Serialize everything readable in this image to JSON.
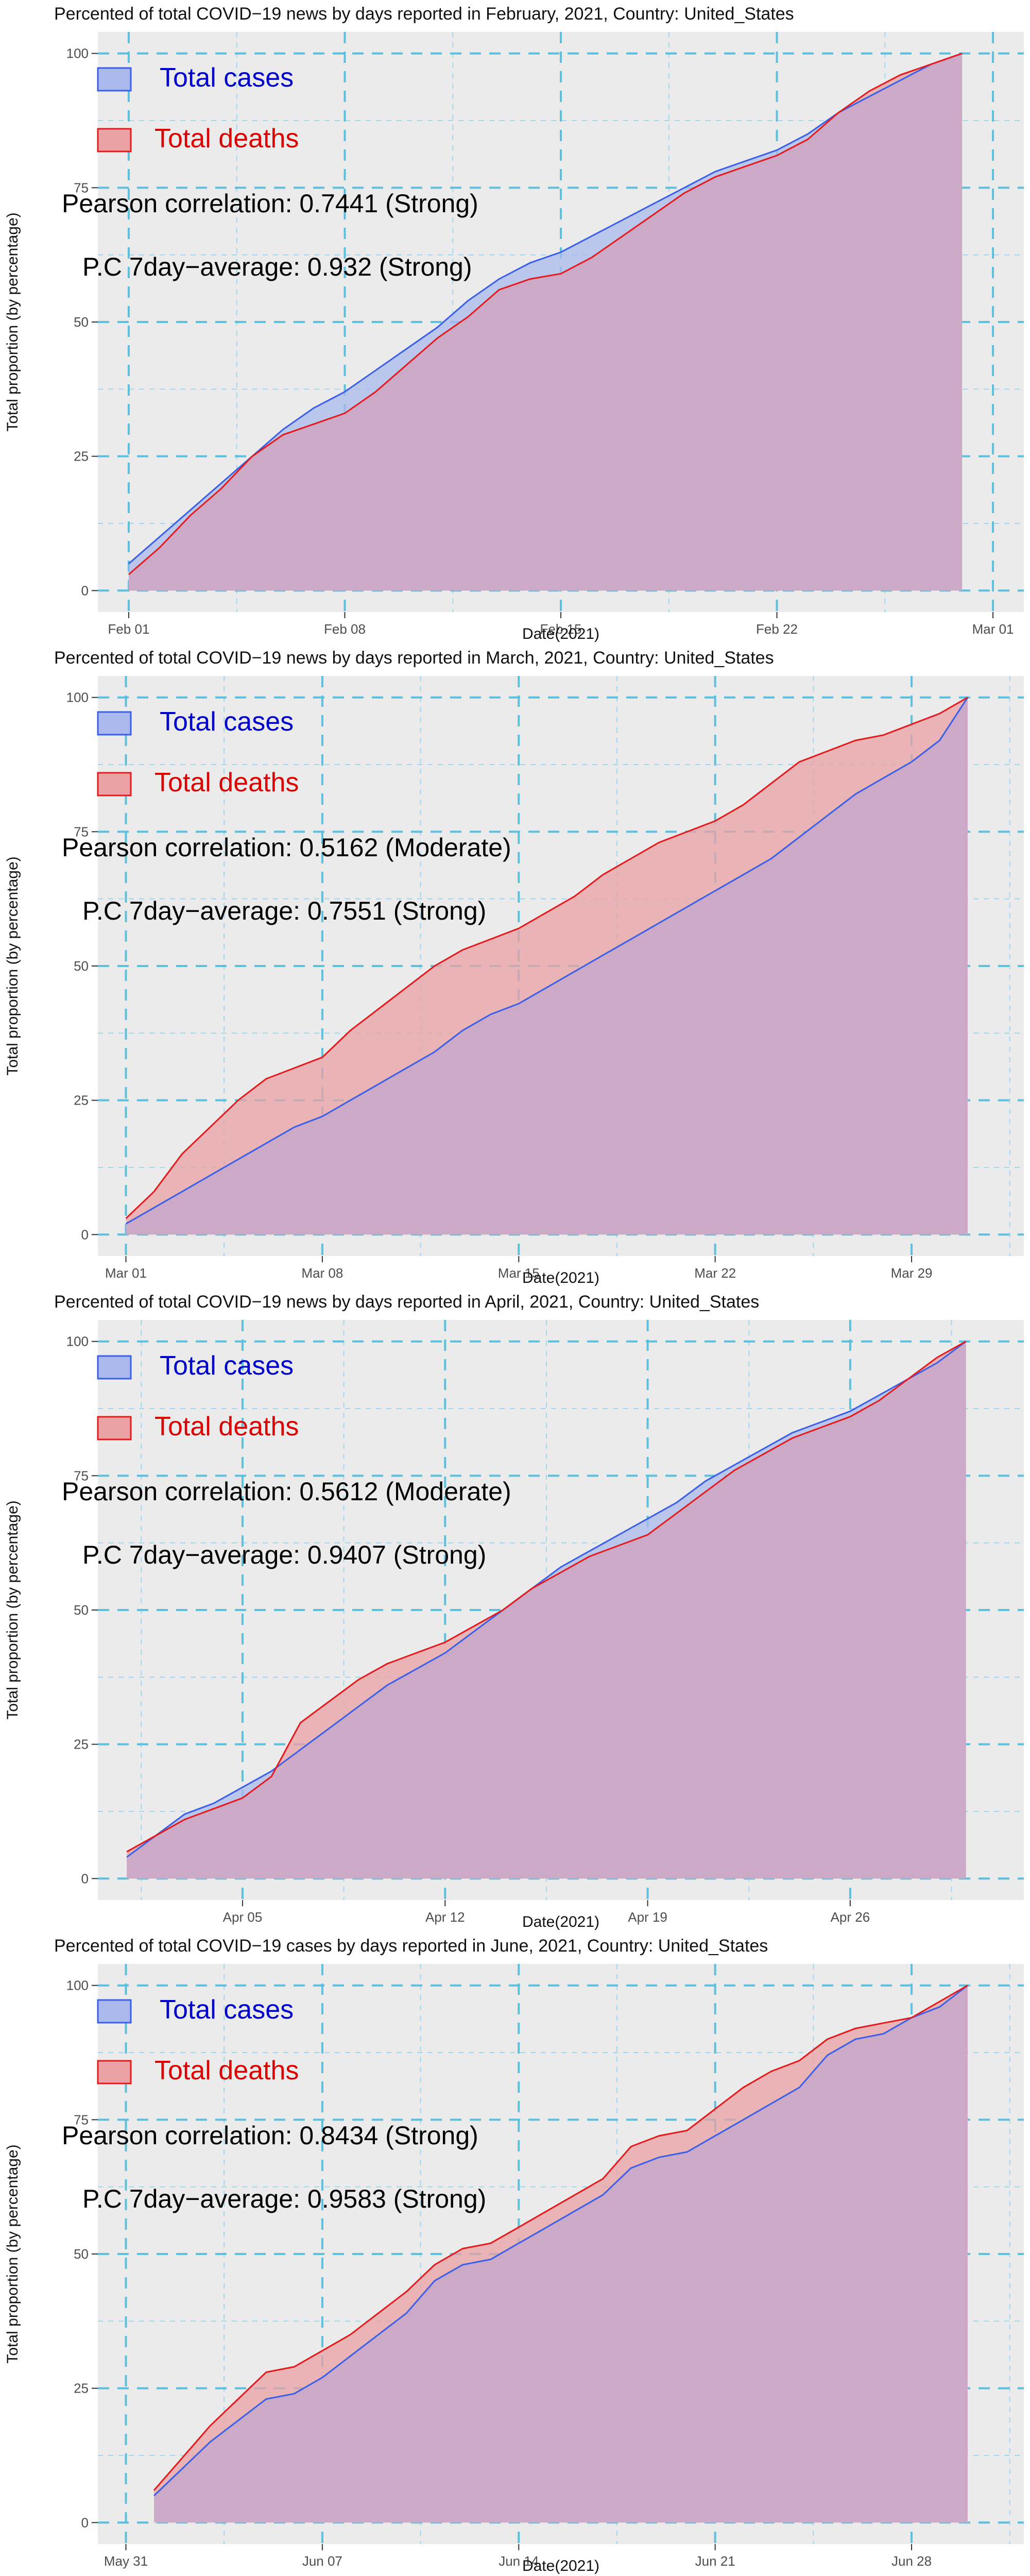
{
  "chart_data": [
    {
      "type": "area",
      "title": "Percented of total COVID−19 news by days reported in February, 2021, Country: United_States",
      "xlabel": "Date(2021)",
      "ylabel": "Total proportion (by percentage)",
      "x_range": [
        "2021-01-31",
        "2021-03-02"
      ],
      "ylim": [
        -4,
        104
      ],
      "x_ticks": [
        {
          "date": "2021-02-01",
          "label": "Feb 01"
        },
        {
          "date": "2021-02-08",
          "label": "Feb 08"
        },
        {
          "date": "2021-02-15",
          "label": "Feb 15"
        },
        {
          "date": "2021-02-22",
          "label": "Feb 22"
        },
        {
          "date": "2021-03-01",
          "label": "Mar 01"
        }
      ],
      "y_ticks": [
        0,
        25,
        50,
        75,
        100
      ],
      "grid": true,
      "legend_position": "top-left",
      "legend": [
        "Total cases",
        "Total deaths"
      ],
      "annotations": [
        "Pearson correlation: 0.7441 (Strong)",
        "P.C 7day−average: 0.932 (Strong)"
      ],
      "x": [
        "2021-02-01",
        "2021-02-02",
        "2021-02-03",
        "2021-02-04",
        "2021-02-05",
        "2021-02-06",
        "2021-02-07",
        "2021-02-08",
        "2021-02-09",
        "2021-02-10",
        "2021-02-11",
        "2021-02-12",
        "2021-02-13",
        "2021-02-14",
        "2021-02-15",
        "2021-02-16",
        "2021-02-17",
        "2021-02-18",
        "2021-02-19",
        "2021-02-20",
        "2021-02-21",
        "2021-02-22",
        "2021-02-23",
        "2021-02-24",
        "2021-02-25",
        "2021-02-26",
        "2021-02-27",
        "2021-02-28"
      ],
      "series": [
        {
          "name": "Total cases",
          "values": [
            5,
            10,
            15,
            20,
            25,
            30,
            34,
            37,
            41,
            45,
            49,
            54,
            58,
            61,
            63,
            66,
            69,
            72,
            75,
            78,
            80,
            82,
            85,
            89,
            92,
            95,
            98,
            100
          ]
        },
        {
          "name": "Total deaths",
          "values": [
            3,
            8,
            14,
            19,
            25,
            29,
            31,
            33,
            37,
            42,
            47,
            51,
            56,
            58,
            59,
            62,
            66,
            70,
            74,
            77,
            79,
            81,
            84,
            89,
            93,
            96,
            98,
            100
          ]
        }
      ]
    },
    {
      "type": "area",
      "title": "Percented of total COVID−19 news by days reported in March, 2021, Country: United_States",
      "xlabel": "Date(2021)",
      "ylabel": "Total proportion (by percentage)",
      "x_range": [
        "2021-02-28",
        "2021-04-02"
      ],
      "ylim": [
        -4,
        104
      ],
      "x_ticks": [
        {
          "date": "2021-03-01",
          "label": "Mar 01"
        },
        {
          "date": "2021-03-08",
          "label": "Mar 08"
        },
        {
          "date": "2021-03-15",
          "label": "Mar 15"
        },
        {
          "date": "2021-03-22",
          "label": "Mar 22"
        },
        {
          "date": "2021-03-29",
          "label": "Mar 29"
        }
      ],
      "y_ticks": [
        0,
        25,
        50,
        75,
        100
      ],
      "grid": true,
      "legend_position": "top-left",
      "legend": [
        "Total cases",
        "Total deaths"
      ],
      "annotations": [
        "Pearson correlation: 0.5162 (Moderate)",
        "P.C 7day−average: 0.7551 (Strong)"
      ],
      "x": [
        "2021-03-01",
        "2021-03-02",
        "2021-03-03",
        "2021-03-04",
        "2021-03-05",
        "2021-03-06",
        "2021-03-07",
        "2021-03-08",
        "2021-03-09",
        "2021-03-10",
        "2021-03-11",
        "2021-03-12",
        "2021-03-13",
        "2021-03-14",
        "2021-03-15",
        "2021-03-16",
        "2021-03-17",
        "2021-03-18",
        "2021-03-19",
        "2021-03-20",
        "2021-03-21",
        "2021-03-22",
        "2021-03-23",
        "2021-03-24",
        "2021-03-25",
        "2021-03-26",
        "2021-03-27",
        "2021-03-28",
        "2021-03-29",
        "2021-03-30",
        "2021-03-31"
      ],
      "series": [
        {
          "name": "Total cases",
          "values": [
            2,
            5,
            8,
            11,
            14,
            17,
            20,
            22,
            25,
            28,
            31,
            34,
            38,
            41,
            43,
            46,
            49,
            52,
            55,
            58,
            61,
            64,
            67,
            70,
            74,
            78,
            82,
            85,
            88,
            92,
            100
          ]
        },
        {
          "name": "Total deaths",
          "values": [
            3,
            8,
            15,
            20,
            25,
            29,
            31,
            33,
            38,
            42,
            46,
            50,
            53,
            55,
            57,
            60,
            63,
            67,
            70,
            73,
            75,
            77,
            80,
            84,
            88,
            90,
            92,
            93,
            95,
            97,
            100
          ]
        }
      ]
    },
    {
      "type": "area",
      "title": "Percented of total COVID−19 news by days reported in April, 2021, Country: United_States",
      "xlabel": "Date(2021)",
      "ylabel": "Total proportion (by percentage)",
      "x_range": [
        "2021-03-31",
        "2021-05-02"
      ],
      "ylim": [
        -4,
        104
      ],
      "x_ticks": [
        {
          "date": "2021-04-05",
          "label": "Apr 05"
        },
        {
          "date": "2021-04-12",
          "label": "Apr 12"
        },
        {
          "date": "2021-04-19",
          "label": "Apr 19"
        },
        {
          "date": "2021-04-26",
          "label": "Apr 26"
        }
      ],
      "y_ticks": [
        0,
        25,
        50,
        75,
        100
      ],
      "grid": true,
      "legend_position": "top-left",
      "legend": [
        "Total cases",
        "Total deaths"
      ],
      "annotations": [
        "Pearson correlation: 0.5612 (Moderate)",
        "P.C 7day−average: 0.9407 (Strong)"
      ],
      "x": [
        "2021-04-01",
        "2021-04-02",
        "2021-04-03",
        "2021-04-04",
        "2021-04-05",
        "2021-04-06",
        "2021-04-07",
        "2021-04-08",
        "2021-04-09",
        "2021-04-10",
        "2021-04-11",
        "2021-04-12",
        "2021-04-13",
        "2021-04-14",
        "2021-04-15",
        "2021-04-16",
        "2021-04-17",
        "2021-04-18",
        "2021-04-19",
        "2021-04-20",
        "2021-04-21",
        "2021-04-22",
        "2021-04-23",
        "2021-04-24",
        "2021-04-25",
        "2021-04-26",
        "2021-04-27",
        "2021-04-28",
        "2021-04-29",
        "2021-04-30"
      ],
      "series": [
        {
          "name": "Total cases",
          "values": [
            4,
            8,
            12,
            14,
            17,
            20,
            24,
            28,
            32,
            36,
            39,
            42,
            46,
            50,
            54,
            58,
            61,
            64,
            67,
            70,
            74,
            77,
            80,
            83,
            85,
            87,
            90,
            93,
            96,
            100
          ]
        },
        {
          "name": "Total deaths",
          "values": [
            5,
            8,
            11,
            13,
            15,
            19,
            29,
            33,
            37,
            40,
            42,
            44,
            47,
            50,
            54,
            57,
            60,
            62,
            64,
            68,
            72,
            76,
            79,
            82,
            84,
            86,
            89,
            93,
            97,
            100
          ]
        }
      ]
    },
    {
      "type": "area",
      "title": "Percented of total COVID−19 cases by days reported in June, 2021, Country: United_States",
      "xlabel": "Date(2021)",
      "ylabel": "Total proportion (by percentage)",
      "x_range": [
        "2021-05-30",
        "2021-07-02"
      ],
      "ylim": [
        -4,
        104
      ],
      "x_ticks": [
        {
          "date": "2021-05-31",
          "label": "May 31"
        },
        {
          "date": "2021-06-07",
          "label": "Jun 07"
        },
        {
          "date": "2021-06-14",
          "label": "Jun 14"
        },
        {
          "date": "2021-06-21",
          "label": "Jun 21"
        },
        {
          "date": "2021-06-28",
          "label": "Jun 28"
        }
      ],
      "y_ticks": [
        0,
        25,
        50,
        75,
        100
      ],
      "grid": true,
      "legend_position": "top-left",
      "legend": [
        "Total cases",
        "Total deaths"
      ],
      "annotations": [
        "Pearson correlation: 0.8434 (Strong)",
        "P.C 7day−average: 0.9583 (Strong)"
      ],
      "x": [
        "2021-06-01",
        "2021-06-02",
        "2021-06-03",
        "2021-06-04",
        "2021-06-05",
        "2021-06-06",
        "2021-06-07",
        "2021-06-08",
        "2021-06-09",
        "2021-06-10",
        "2021-06-11",
        "2021-06-12",
        "2021-06-13",
        "2021-06-14",
        "2021-06-15",
        "2021-06-16",
        "2021-06-17",
        "2021-06-18",
        "2021-06-19",
        "2021-06-20",
        "2021-06-21",
        "2021-06-22",
        "2021-06-23",
        "2021-06-24",
        "2021-06-25",
        "2021-06-26",
        "2021-06-27",
        "2021-06-28",
        "2021-06-29",
        "2021-06-30"
      ],
      "series": [
        {
          "name": "Total cases",
          "values": [
            5,
            10,
            15,
            19,
            23,
            24,
            27,
            31,
            35,
            39,
            45,
            48,
            49,
            52,
            55,
            58,
            61,
            66,
            68,
            69,
            72,
            75,
            78,
            81,
            87,
            90,
            91,
            94,
            96,
            100
          ]
        },
        {
          "name": "Total deaths",
          "values": [
            6,
            12,
            18,
            23,
            28,
            29,
            32,
            35,
            39,
            43,
            48,
            51,
            52,
            55,
            58,
            61,
            64,
            70,
            72,
            73,
            77,
            81,
            84,
            86,
            90,
            92,
            93,
            94,
            97,
            100
          ]
        }
      ]
    }
  ],
  "colors": {
    "panel_bg": "#ebebeb",
    "grid_major": "#5bc0de",
    "grid_minor": "#9fd7ec",
    "cases_line": "#3a5fe8",
    "cases_fill": "#a9b9ec",
    "deaths_line": "#e41a1c",
    "deaths_fill": "#eaa2a4",
    "overlap_fill": "#ccaac7",
    "cases_text": "#0000cc",
    "deaths_text": "#dd0000"
  }
}
